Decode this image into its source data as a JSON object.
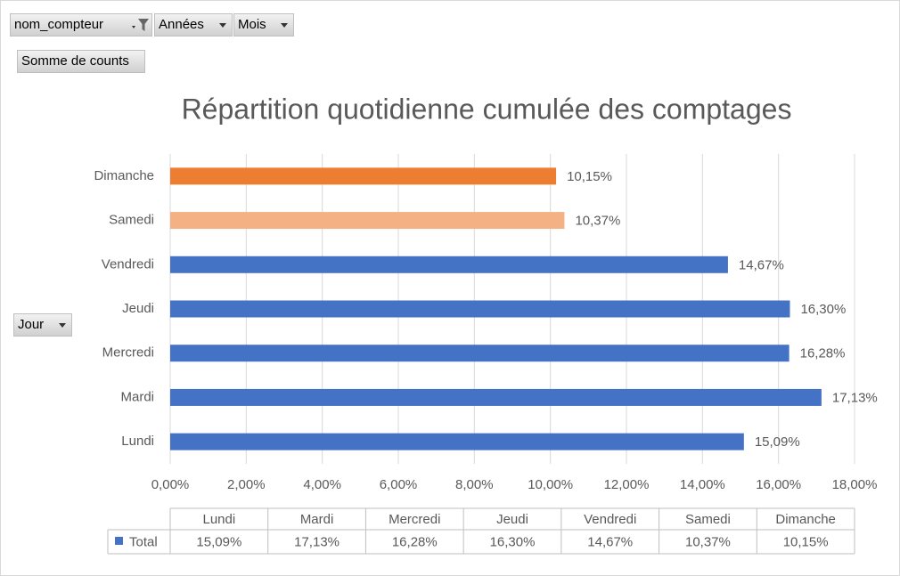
{
  "chart_data": {
    "type": "bar",
    "orientation": "horizontal",
    "title": "Répartition quotidienne cumulée des comptages",
    "filter_fields": [
      "nom_compteur",
      "Années",
      "Mois"
    ],
    "value_field": "Somme de counts",
    "axis_field": "Jour",
    "categories": [
      "Lundi",
      "Mardi",
      "Mercredi",
      "Jeudi",
      "Vendredi",
      "Samedi",
      "Dimanche"
    ],
    "series": [
      {
        "name": "Total",
        "color": "#4472c4",
        "colors": [
          "#4472c4",
          "#4472c4",
          "#4472c4",
          "#4472c4",
          "#4472c4",
          "#f4b183",
          "#ed7d31"
        ],
        "values": [
          15.09,
          17.13,
          16.28,
          16.3,
          14.67,
          10.37,
          10.15
        ],
        "value_labels": [
          "15,09%",
          "17,13%",
          "16,28%",
          "16,30%",
          "14,67%",
          "10,37%",
          "10,15%"
        ]
      }
    ],
    "xlim": [
      0,
      18
    ],
    "xticks": [
      {
        "value": 0,
        "label": "0,00%"
      },
      {
        "value": 2,
        "label": "2,00%"
      },
      {
        "value": 4,
        "label": "4,00%"
      },
      {
        "value": 6,
        "label": "6,00%"
      },
      {
        "value": 8,
        "label": "8,00%"
      },
      {
        "value": 10,
        "label": "10,00%"
      },
      {
        "value": 12,
        "label": "12,00%"
      },
      {
        "value": 14,
        "label": "14,00%"
      },
      {
        "value": 16,
        "label": "16,00%"
      },
      {
        "value": 18,
        "label": "18,00%"
      }
    ],
    "grid": true,
    "data_table": true
  }
}
